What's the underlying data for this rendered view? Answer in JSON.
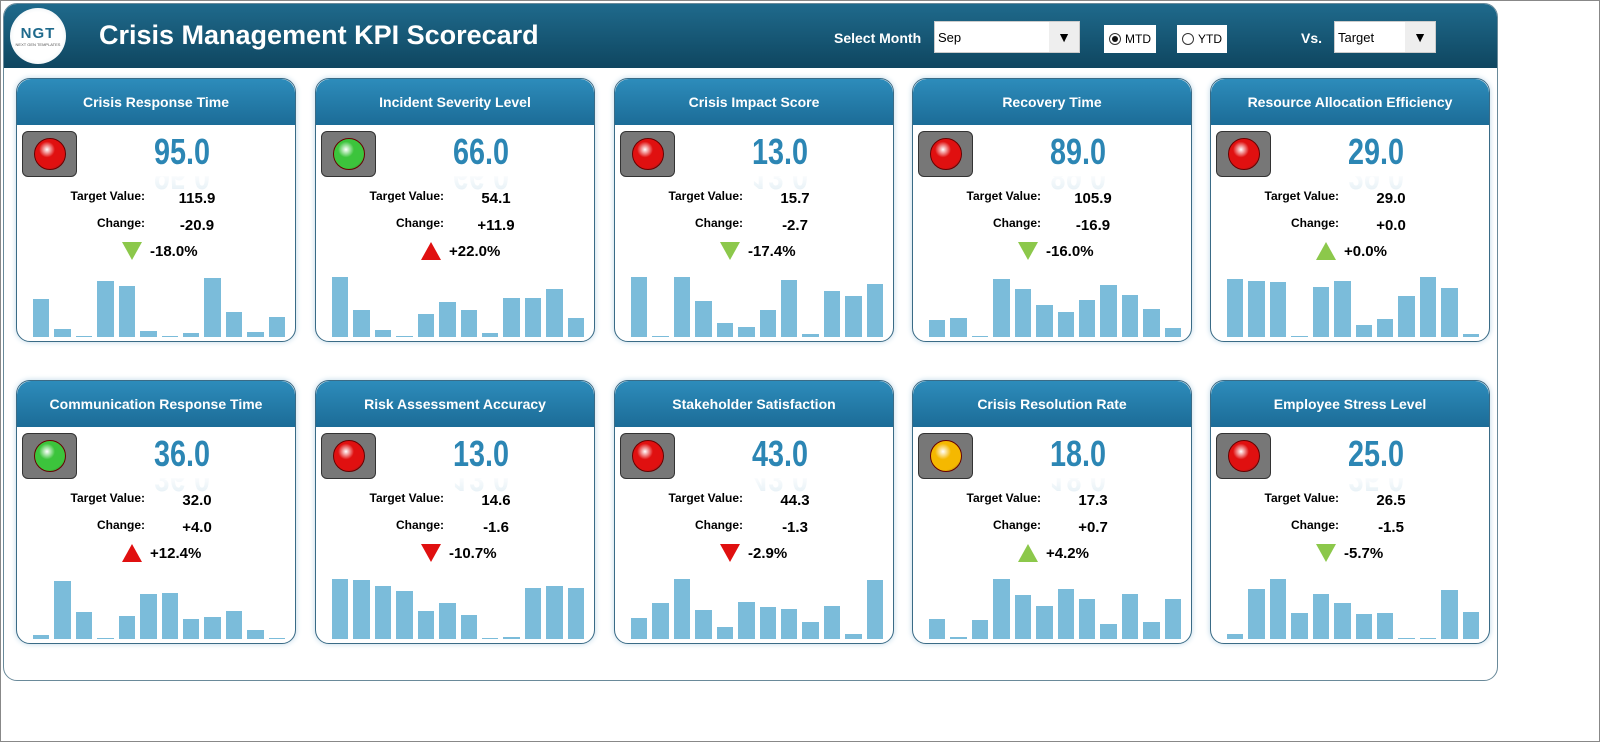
{
  "header": {
    "logo_text": "NGT",
    "logo_sub": "NEXT GEN TEMPLATES",
    "title": "Crisis Management KPI Scorecard",
    "select_month_label": "Select Month",
    "month": "Sep",
    "mtd": "MTD",
    "ytd": "YTD",
    "selected_period": "MTD",
    "vs_label": "Vs.",
    "vs_value": "Target"
  },
  "labels": {
    "target": "Target Value:",
    "change": "Change:"
  },
  "colors": {
    "red": "#e01010",
    "green": "#3cc43c",
    "amber": "#f5b800",
    "up_red": "#e01010",
    "green_tri": "#8cc84b"
  },
  "cards": [
    {
      "title": "Crisis Response Time",
      "value": "95.0",
      "target": "115.9",
      "change": "-20.9",
      "pct": "-18.0%",
      "dir": "down",
      "arrow_color": "green",
      "light": "red",
      "bars": [
        37,
        8,
        1,
        54,
        49,
        6,
        1,
        4,
        57,
        24,
        5,
        19
      ]
    },
    {
      "title": "Incident Severity Level",
      "value": "66.0",
      "target": "54.1",
      "change": "+11.9",
      "pct": "+22.0%",
      "dir": "up",
      "arrow_color": "red",
      "light": "green",
      "bars": [
        58,
        26,
        7,
        1,
        22,
        34,
        26,
        4,
        38,
        38,
        46,
        18
      ]
    },
    {
      "title": "Crisis Impact Score",
      "value": "13.0",
      "target": "15.7",
      "change": "-2.7",
      "pct": "-17.4%",
      "dir": "down",
      "arrow_color": "green",
      "light": "red",
      "bars": [
        58,
        1,
        58,
        35,
        14,
        10,
        26,
        55,
        3,
        45,
        40,
        51
      ]
    },
    {
      "title": "Recovery Time",
      "value": "89.0",
      "target": "105.9",
      "change": "-16.9",
      "pct": "-16.0%",
      "dir": "down",
      "arrow_color": "green",
      "light": "red",
      "bars": [
        16,
        18,
        1,
        56,
        46,
        31,
        24,
        36,
        50,
        41,
        27,
        9
      ]
    },
    {
      "title": "Resource Allocation Efficiency",
      "value": "29.0",
      "target": "29.0",
      "change": "+0.0",
      "pct": "+0.0%",
      "dir": "up",
      "arrow_color": "green",
      "light": "red",
      "bars": [
        56,
        54,
        53,
        1,
        48,
        54,
        12,
        17,
        40,
        58,
        47,
        3
      ]
    },
    {
      "title": "Communication Response Time",
      "value": "36.0",
      "target": "32.0",
      "change": "+4.0",
      "pct": "+12.4%",
      "dir": "up",
      "arrow_color": "red",
      "light": "green",
      "bars": [
        4,
        56,
        26,
        1,
        22,
        44,
        45,
        19,
        21,
        27,
        9,
        1
      ]
    },
    {
      "title": "Risk Assessment Accuracy",
      "value": "13.0",
      "target": "14.6",
      "change": "-1.6",
      "pct": "-10.7%",
      "dir": "down",
      "arrow_color": "red",
      "light": "red",
      "bars": [
        58,
        57,
        51,
        46,
        27,
        35,
        23,
        1,
        2,
        49,
        51,
        49
      ]
    },
    {
      "title": "Stakeholder Satisfaction",
      "value": "43.0",
      "target": "44.3",
      "change": "-1.3",
      "pct": "-2.9%",
      "dir": "down",
      "arrow_color": "red",
      "light": "red",
      "bars": [
        20,
        35,
        58,
        28,
        12,
        36,
        31,
        29,
        16,
        32,
        5,
        57
      ]
    },
    {
      "title": "Crisis Resolution Rate",
      "value": "18.0",
      "target": "17.3",
      "change": "+0.7",
      "pct": "+4.2%",
      "dir": "up",
      "arrow_color": "green",
      "light": "amber",
      "bars": [
        19,
        2,
        18,
        58,
        43,
        32,
        48,
        39,
        15,
        44,
        16,
        39
      ]
    },
    {
      "title": "Employee Stress Level",
      "value": "25.0",
      "target": "26.5",
      "change": "-1.5",
      "pct": "-5.7%",
      "dir": "down",
      "arrow_color": "green",
      "light": "red",
      "bars": [
        5,
        48,
        58,
        25,
        44,
        35,
        24,
        25,
        1,
        1,
        47,
        26
      ]
    }
  ]
}
